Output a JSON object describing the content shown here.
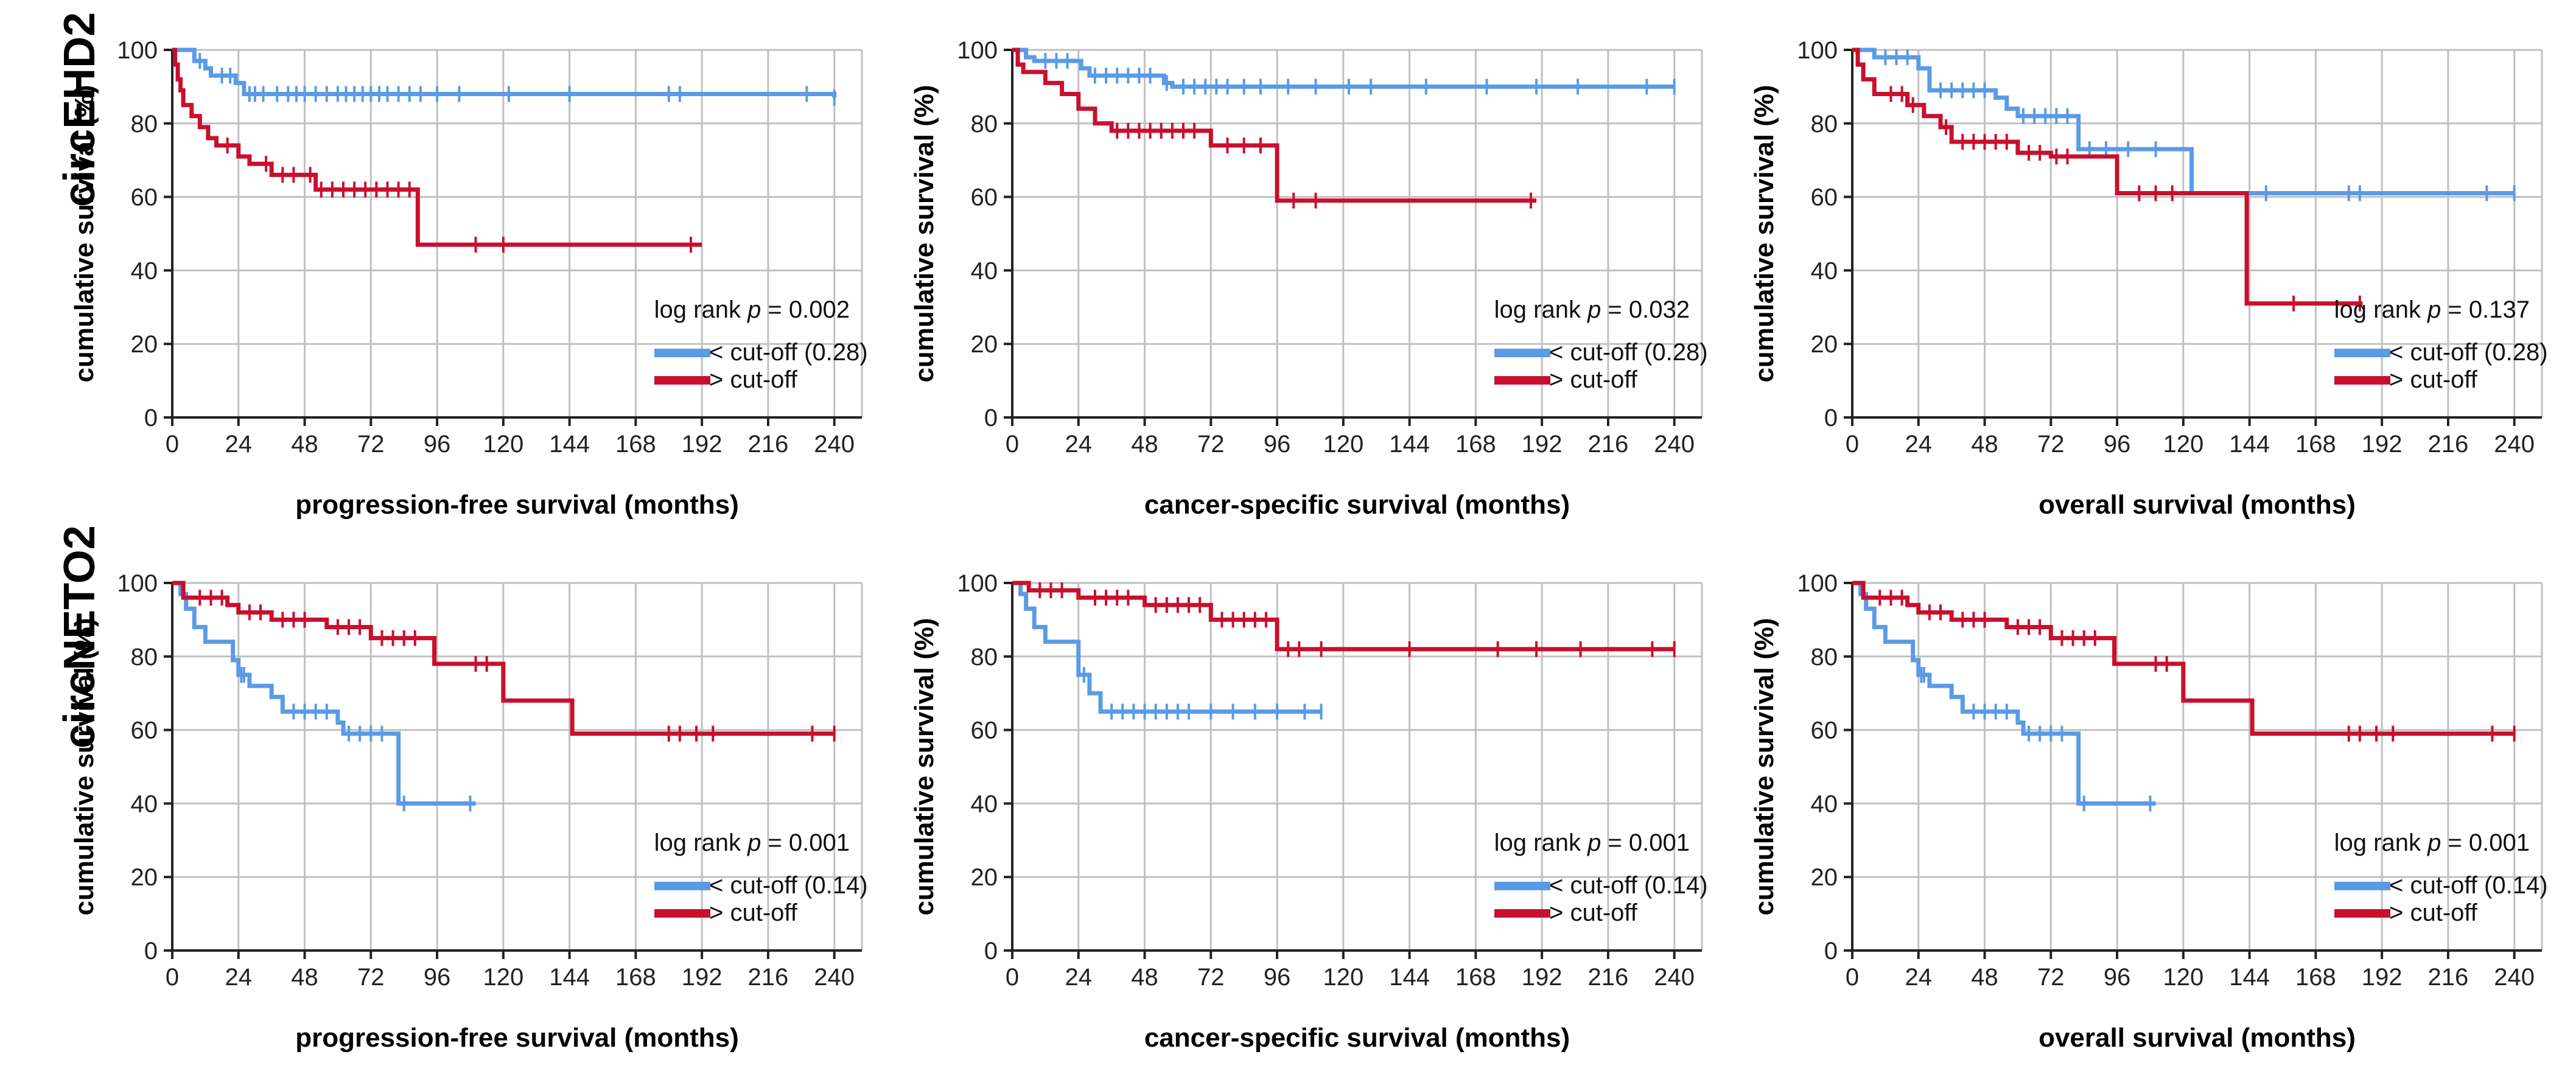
{
  "figure": {
    "row_labels": [
      "circEHD2",
      "circNETO2"
    ],
    "colors": {
      "low": "#5a9be6",
      "high": "#c8102e",
      "grid": "#c0c0c0",
      "axis": "#222222"
    }
  },
  "chart_data": [
    {
      "type": "line",
      "subtype": "kaplan-meier",
      "row": 0,
      "col": 0,
      "xlabel": "progression-free survival (months)",
      "ylabel": "cumulative survival (%)",
      "xlim": [
        0,
        250
      ],
      "ylim": [
        0,
        100
      ],
      "xticks": [
        0,
        24,
        48,
        72,
        96,
        120,
        144,
        168,
        192,
        216,
        240
      ],
      "yticks": [
        0,
        20,
        40,
        60,
        80,
        100
      ],
      "stat_prefix": "log rank ",
      "stat_p": "p",
      "stat_value": " = 0.002",
      "series": [
        {
          "name": "< cut-off (0.28)",
          "color_key": "low",
          "steps": [
            [
              0,
              100
            ],
            [
              8,
              97
            ],
            [
              12,
              95
            ],
            [
              14,
              93
            ],
            [
              23,
              91
            ],
            [
              26,
              88
            ],
            [
              240,
              87
            ]
          ],
          "censors": [
            10,
            18,
            21,
            28,
            30,
            33,
            38,
            42,
            45,
            48,
            52,
            56,
            60,
            63,
            66,
            69,
            72,
            75,
            78,
            82,
            86,
            90,
            96,
            104,
            122,
            144,
            180,
            184,
            230,
            240
          ]
        },
        {
          "name": "> cut-off",
          "color_key": "high",
          "steps": [
            [
              0,
              100
            ],
            [
              1,
              96
            ],
            [
              2,
              92
            ],
            [
              3,
              89
            ],
            [
              4,
              85
            ],
            [
              7,
              82
            ],
            [
              10,
              79
            ],
            [
              13,
              76
            ],
            [
              16,
              74
            ],
            [
              24,
              71
            ],
            [
              28,
              69
            ],
            [
              36,
              66
            ],
            [
              52,
              62
            ],
            [
              89,
              47
            ],
            [
              192,
              47
            ]
          ],
          "censors": [
            20,
            34,
            40,
            44,
            50,
            54,
            58,
            62,
            66,
            70,
            74,
            78,
            82,
            86,
            110,
            120,
            188
          ]
        }
      ]
    },
    {
      "type": "line",
      "subtype": "kaplan-meier",
      "row": 0,
      "col": 1,
      "xlabel": "cancer-specific survival (months)",
      "ylabel": "cumulative survival (%)",
      "xlim": [
        0,
        250
      ],
      "ylim": [
        0,
        100
      ],
      "xticks": [
        0,
        24,
        48,
        72,
        96,
        120,
        144,
        168,
        192,
        216,
        240
      ],
      "yticks": [
        0,
        20,
        40,
        60,
        80,
        100
      ],
      "stat_prefix": "log rank ",
      "stat_p": "p",
      "stat_value": " = 0.032",
      "series": [
        {
          "name": "< cut-off (0.28)",
          "color_key": "low",
          "steps": [
            [
              0,
              100
            ],
            [
              5,
              98
            ],
            [
              8,
              97
            ],
            [
              25,
              95
            ],
            [
              28,
              93
            ],
            [
              55,
              91
            ],
            [
              58,
              90
            ],
            [
              240,
              90
            ]
          ],
          "censors": [
            12,
            16,
            20,
            30,
            34,
            38,
            42,
            46,
            50,
            56,
            62,
            66,
            70,
            74,
            78,
            84,
            90,
            100,
            110,
            122,
            130,
            150,
            172,
            190,
            205,
            230,
            240
          ]
        },
        {
          "name": "> cut-off",
          "color_key": "high",
          "steps": [
            [
              0,
              100
            ],
            [
              2,
              96
            ],
            [
              4,
              94
            ],
            [
              12,
              91
            ],
            [
              18,
              88
            ],
            [
              24,
              84
            ],
            [
              30,
              80
            ],
            [
              36,
              78
            ],
            [
              72,
              74
            ],
            [
              96,
              59
            ],
            [
              190,
              59
            ]
          ],
          "censors": [
            38,
            42,
            46,
            50,
            54,
            58,
            62,
            66,
            78,
            84,
            90,
            102,
            110,
            188
          ]
        }
      ]
    },
    {
      "type": "line",
      "subtype": "kaplan-meier",
      "row": 0,
      "col": 2,
      "xlabel": "overall survival (months)",
      "ylabel": "cumulative survival (%)",
      "xlim": [
        0,
        250
      ],
      "ylim": [
        0,
        100
      ],
      "xticks": [
        0,
        24,
        48,
        72,
        96,
        120,
        144,
        168,
        192,
        216,
        240
      ],
      "yticks": [
        0,
        20,
        40,
        60,
        80,
        100
      ],
      "stat_prefix": "log rank ",
      "stat_p": "p",
      "stat_value": " = 0.137",
      "series": [
        {
          "name": "< cut-off (0.28)",
          "color_key": "low",
          "steps": [
            [
              0,
              100
            ],
            [
              8,
              98
            ],
            [
              24,
              95
            ],
            [
              28,
              89
            ],
            [
              52,
              87
            ],
            [
              56,
              84
            ],
            [
              60,
              82
            ],
            [
              82,
              73
            ],
            [
              123,
              61
            ],
            [
              240,
              61
            ]
          ],
          "censors": [
            12,
            16,
            20,
            32,
            36,
            40,
            44,
            48,
            62,
            66,
            70,
            74,
            78,
            86,
            92,
            100,
            110,
            150,
            180,
            184,
            230,
            240
          ]
        },
        {
          "name": "> cut-off",
          "color_key": "high",
          "steps": [
            [
              0,
              100
            ],
            [
              2,
              96
            ],
            [
              4,
              92
            ],
            [
              8,
              88
            ],
            [
              20,
              85
            ],
            [
              26,
              82
            ],
            [
              32,
              79
            ],
            [
              36,
              75
            ],
            [
              60,
              72
            ],
            [
              72,
              71
            ],
            [
              96,
              61
            ],
            [
              143,
              31
            ],
            [
              185,
              31
            ]
          ],
          "censors": [
            14,
            18,
            22,
            34,
            40,
            44,
            48,
            52,
            56,
            64,
            68,
            74,
            78,
            104,
            110,
            116,
            160,
            184
          ]
        }
      ]
    },
    {
      "type": "line",
      "subtype": "kaplan-meier",
      "row": 1,
      "col": 0,
      "xlabel": "progression-free survival (months)",
      "ylabel": "cumulative survival (%)",
      "xlim": [
        0,
        250
      ],
      "ylim": [
        0,
        100
      ],
      "xticks": [
        0,
        24,
        48,
        72,
        96,
        120,
        144,
        168,
        192,
        216,
        240
      ],
      "yticks": [
        0,
        20,
        40,
        60,
        80,
        100
      ],
      "stat_prefix": "log rank ",
      "stat_p": "p",
      "stat_value": " = 0.001",
      "series": [
        {
          "name": "< cut-off (0.14)",
          "color_key": "low",
          "steps": [
            [
              0,
              100
            ],
            [
              3,
              97
            ],
            [
              5,
              93
            ],
            [
              8,
              88
            ],
            [
              12,
              84
            ],
            [
              22,
              79
            ],
            [
              24,
              75
            ],
            [
              28,
              72
            ],
            [
              36,
              69
            ],
            [
              40,
              65
            ],
            [
              60,
              62
            ],
            [
              62,
              59
            ],
            [
              82,
              40
            ],
            [
              110,
              40
            ]
          ],
          "censors": [
            25,
            26,
            44,
            48,
            52,
            56,
            64,
            68,
            72,
            76,
            84,
            108
          ]
        },
        {
          "name": "> cut-off",
          "color_key": "high",
          "steps": [
            [
              0,
              100
            ],
            [
              4,
              96
            ],
            [
              20,
              94
            ],
            [
              24,
              92
            ],
            [
              36,
              90
            ],
            [
              56,
              88
            ],
            [
              72,
              85
            ],
            [
              95,
              78
            ],
            [
              120,
              68
            ],
            [
              145,
              59
            ],
            [
              240,
              59
            ]
          ],
          "censors": [
            10,
            14,
            18,
            28,
            32,
            40,
            44,
            48,
            60,
            64,
            68,
            76,
            80,
            84,
            88,
            110,
            114,
            180,
            184,
            190,
            196,
            232,
            240
          ]
        }
      ]
    },
    {
      "type": "line",
      "subtype": "kaplan-meier",
      "row": 1,
      "col": 1,
      "xlabel": "cancer-specific survival (months)",
      "ylabel": "cumulative survival (%)",
      "xlim": [
        0,
        250
      ],
      "ylim": [
        0,
        100
      ],
      "xticks": [
        0,
        24,
        48,
        72,
        96,
        120,
        144,
        168,
        192,
        216,
        240
      ],
      "yticks": [
        0,
        20,
        40,
        60,
        80,
        100
      ],
      "stat_prefix": "log rank ",
      "stat_p": "p",
      "stat_value": " = 0.001",
      "series": [
        {
          "name": "< cut-off (0.14)",
          "color_key": "low",
          "steps": [
            [
              0,
              100
            ],
            [
              3,
              97
            ],
            [
              5,
              93
            ],
            [
              8,
              88
            ],
            [
              12,
              84
            ],
            [
              24,
              75
            ],
            [
              28,
              70
            ],
            [
              32,
              65
            ],
            [
              112,
              65
            ]
          ],
          "censors": [
            26,
            36,
            40,
            44,
            48,
            52,
            56,
            60,
            64,
            72,
            80,
            88,
            96,
            106,
            112
          ]
        },
        {
          "name": "> cut-off",
          "color_key": "high",
          "steps": [
            [
              0,
              100
            ],
            [
              6,
              98
            ],
            [
              24,
              96
            ],
            [
              48,
              94
            ],
            [
              72,
              90
            ],
            [
              96,
              82
            ],
            [
              240,
              82
            ]
          ],
          "censors": [
            10,
            14,
            18,
            30,
            34,
            38,
            42,
            52,
            56,
            60,
            64,
            68,
            76,
            80,
            84,
            88,
            92,
            100,
            104,
            112,
            144,
            176,
            190,
            206,
            232,
            240
          ]
        }
      ]
    },
    {
      "type": "line",
      "subtype": "kaplan-meier",
      "row": 1,
      "col": 2,
      "xlabel": "overall survival (months)",
      "ylabel": "cumulative survival (%)",
      "xlim": [
        0,
        250
      ],
      "ylim": [
        0,
        100
      ],
      "xticks": [
        0,
        24,
        48,
        72,
        96,
        120,
        144,
        168,
        192,
        216,
        240
      ],
      "yticks": [
        0,
        20,
        40,
        60,
        80,
        100
      ],
      "stat_prefix": "log rank ",
      "stat_p": "p",
      "stat_value": " = 0.001",
      "series": [
        {
          "name": "< cut-off (0.14)",
          "color_key": "low",
          "steps": [
            [
              0,
              100
            ],
            [
              3,
              97
            ],
            [
              5,
              93
            ],
            [
              8,
              88
            ],
            [
              12,
              84
            ],
            [
              22,
              79
            ],
            [
              24,
              75
            ],
            [
              28,
              72
            ],
            [
              36,
              69
            ],
            [
              40,
              65
            ],
            [
              60,
              62
            ],
            [
              62,
              59
            ],
            [
              82,
              40
            ],
            [
              110,
              40
            ]
          ],
          "censors": [
            25,
            26,
            44,
            48,
            52,
            56,
            64,
            68,
            72,
            76,
            84,
            108
          ]
        },
        {
          "name": "> cut-off",
          "color_key": "high",
          "steps": [
            [
              0,
              100
            ],
            [
              4,
              96
            ],
            [
              20,
              94
            ],
            [
              24,
              92
            ],
            [
              36,
              90
            ],
            [
              56,
              88
            ],
            [
              72,
              85
            ],
            [
              95,
              78
            ],
            [
              120,
              68
            ],
            [
              145,
              59
            ],
            [
              240,
              59
            ]
          ],
          "censors": [
            10,
            14,
            18,
            28,
            32,
            40,
            44,
            48,
            60,
            64,
            68,
            76,
            80,
            84,
            88,
            110,
            114,
            180,
            184,
            190,
            196,
            232,
            240
          ]
        }
      ]
    }
  ]
}
